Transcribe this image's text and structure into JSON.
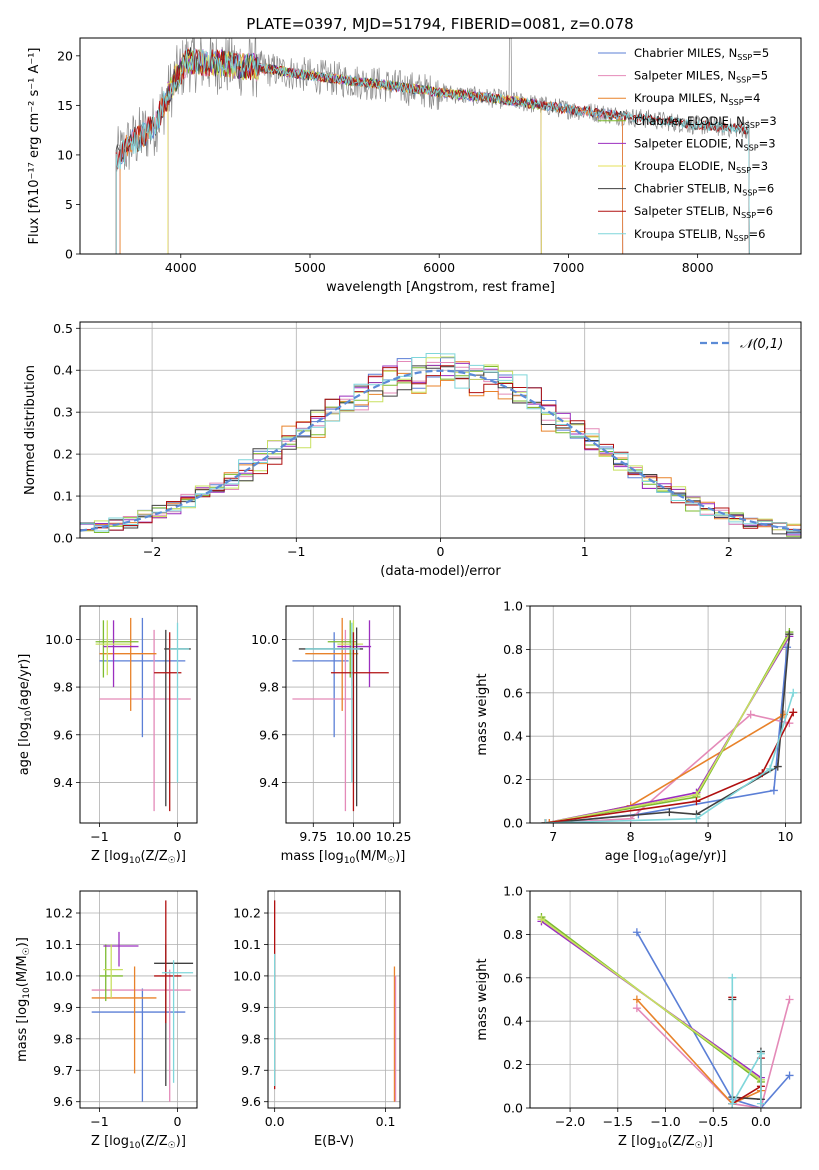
{
  "figure": {
    "title": "PLATE=0397, MJD=51794, FIBERID=0081, z=0.078"
  },
  "chart_data": [
    {
      "id": "spectrum",
      "type": "line",
      "title": "PLATE=0397, MJD=51794, FIBERID=0081, z=0.078",
      "xlabel": "wavelength [Angstrom, rest frame]",
      "ylabel": "Flux [fλ10⁻¹⁷ erg cm⁻² s⁻¹ A⁻¹]",
      "xlim": [
        3220,
        8800
      ],
      "ylim": [
        0,
        21.8
      ],
      "xticks": [
        4000,
        5000,
        6000,
        7000,
        8000
      ],
      "yticks": [
        0,
        5,
        10,
        15,
        20
      ],
      "grid": false,
      "legend_position": "top-right",
      "data_trend": {
        "x": [
          3500,
          3600,
          3800,
          3950,
          4050,
          4300,
          4600,
          5000,
          5500,
          6000,
          6500,
          7000,
          7500,
          8000,
          8400
        ],
        "y": [
          9.5,
          11.0,
          13.0,
          17.5,
          19.5,
          19.2,
          18.8,
          18.0,
          17.2,
          16.3,
          15.6,
          14.6,
          13.8,
          13.0,
          12.6
        ]
      },
      "series": [
        {
          "name": "Chabrier MILES, N$_{SSP}$=5",
          "label_main": "Chabrier MILES, N",
          "label_sub": "SSP",
          "label_tail": "=5",
          "color": "#5b7fd6",
          "x_start": 3530,
          "x_end": 7420
        },
        {
          "name": "Salpeter MILES, N$_{SSP}$=5",
          "label_main": "Salpeter MILES, N",
          "label_sub": "SSP",
          "label_tail": "=5",
          "color": "#e48ab8",
          "x_start": 3530,
          "x_end": 7420
        },
        {
          "name": "Kroupa MILES, N$_{SSP}$=4",
          "label_main": "Kroupa MILES, N",
          "label_sub": "SSP",
          "label_tail": "=4",
          "color": "#e8822a",
          "x_start": 3530,
          "x_end": 7420
        },
        {
          "name": "Chabrier ELODIE, N$_{SSP}$=3",
          "label_main": "Chabrier ELODIE, N",
          "label_sub": "SSP",
          "label_tail": "=3",
          "color": "#7dbb2f",
          "x_start": 3900,
          "x_end": 6790
        },
        {
          "name": "Salpeter ELODIE, N$_{SSP}$=3",
          "label_main": "Salpeter ELODIE, N",
          "label_sub": "SSP",
          "label_tail": "=3",
          "color": "#9b2fbf",
          "x_start": 3900,
          "x_end": 6790
        },
        {
          "name": "Kroupa ELODIE, N$_{SSP}$=3",
          "label_main": "Kroupa ELODIE, N",
          "label_sub": "SSP",
          "label_tail": "=3",
          "color": "#e6e05a",
          "x_start": 3900,
          "x_end": 6790
        },
        {
          "name": "Chabrier STELIB, N$_{SSP}$=6",
          "label_main": "Chabrier STELIB, N",
          "label_sub": "SSP",
          "label_tail": "=6",
          "color": "#404040",
          "x_start": 3500,
          "x_end": 8400
        },
        {
          "name": "Salpeter STELIB, N$_{SSP}$=6",
          "label_main": "Salpeter STELIB, N",
          "label_sub": "SSP",
          "label_tail": "=6",
          "color": "#b01010",
          "x_start": 3500,
          "x_end": 8400
        },
        {
          "name": "Kroupa STELIB, N$_{SSP}$=6",
          "label_main": "Kroupa STELIB, N",
          "label_sub": "SSP",
          "label_tail": "=6",
          "color": "#7fd6da",
          "x_start": 3500,
          "x_end": 8400
        }
      ]
    },
    {
      "id": "residuals",
      "type": "histogram",
      "xlabel": "(data-model)/error",
      "ylabel": "Normed distribution",
      "xlim": [
        -2.5,
        2.5
      ],
      "ylim": [
        0,
        0.515
      ],
      "xticks": [
        -2,
        -1,
        0,
        1,
        2
      ],
      "xtick_labels": [
        "−2",
        "−1",
        "0",
        "1",
        "2"
      ],
      "yticks": [
        0.0,
        0.1,
        0.2,
        0.3,
        0.4,
        0.5
      ],
      "grid": true,
      "bin_width": 0.1,
      "legend": {
        "label": "𝒩(0,1)",
        "position": "top-right"
      },
      "reference_curve": {
        "name": "𝒩(0,1)",
        "mean": 0,
        "sigma": 1,
        "color": "#5b8bd6"
      },
      "series_colors": [
        "#5b7fd6",
        "#e48ab8",
        "#e8822a",
        "#7dbb2f",
        "#9b2fbf",
        "#c8e060",
        "#404040",
        "#b01010",
        "#7fd6da"
      ]
    },
    {
      "id": "z_age",
      "type": "errorbar",
      "xlabel": "Z [log10(Z/Z☉)]",
      "ylabel": "age [log10(age/yr)]",
      "xlim": [
        -1.25,
        0.25
      ],
      "ylim": [
        9.23,
        10.14
      ],
      "xticks": [
        -1,
        0
      ],
      "xtick_labels": [
        "−1",
        "0"
      ],
      "yticks": [
        9.4,
        9.6,
        9.8,
        10.0
      ],
      "grid": true,
      "points": [
        {
          "x": -0.45,
          "y": 9.91,
          "x0": -1.0,
          "x1": 0.1,
          "y0": 9.59,
          "y1": 10.09,
          "color": "#5b7fd6"
        },
        {
          "x": -0.3,
          "y": 9.75,
          "x0": -1.0,
          "x1": 0.17,
          "y0": 9.28,
          "y1": 10.04,
          "color": "#e48ab8"
        },
        {
          "x": -0.6,
          "y": 9.94,
          "x0": -1.0,
          "x1": -0.27,
          "y0": 9.7,
          "y1": 10.09,
          "color": "#e8822a"
        },
        {
          "x": -0.95,
          "y": 9.99,
          "x0": -1.05,
          "x1": -0.5,
          "y0": 9.84,
          "y1": 10.08,
          "color": "#7dbb2f"
        },
        {
          "x": -0.82,
          "y": 9.97,
          "x0": -0.95,
          "x1": -0.5,
          "y0": 9.8,
          "y1": 10.08,
          "color": "#9b2fbf"
        },
        {
          "x": -0.9,
          "y": 9.98,
          "x0": -1.05,
          "x1": -0.6,
          "y0": 9.85,
          "y1": 10.08,
          "color": "#c8e060"
        },
        {
          "x": -0.15,
          "y": 9.96,
          "x0": -0.17,
          "x1": 0.17,
          "y0": 9.3,
          "y1": 10.04,
          "color": "#404040"
        },
        {
          "x": -0.1,
          "y": 9.86,
          "x0": -0.3,
          "x1": 0.05,
          "y0": 9.28,
          "y1": 10.03,
          "color": "#b01010"
        },
        {
          "x": 0.0,
          "y": 9.96,
          "x0": -0.1,
          "x1": 0.15,
          "y0": 9.4,
          "y1": 10.07,
          "color": "#7fd6da"
        }
      ]
    },
    {
      "id": "mass_age",
      "type": "errorbar",
      "xlabel": "mass [log10(M/M☉)]",
      "ylabel": "",
      "xlim": [
        9.58,
        10.29
      ],
      "ylim": [
        9.23,
        10.14
      ],
      "xticks": [
        9.75,
        10.0,
        10.25
      ],
      "xtick_labels": [
        "9.75",
        "10.00",
        "10.25"
      ],
      "yticks": [
        9.4,
        9.6,
        9.8,
        10.0
      ],
      "grid": true,
      "points": [
        {
          "x": 9.88,
          "y": 9.91,
          "x0": 9.62,
          "x1": 9.97,
          "y0": 9.59,
          "y1": 10.03,
          "color": "#5b7fd6"
        },
        {
          "x": 9.95,
          "y": 9.75,
          "x0": 9.62,
          "x1": 10.0,
          "y0": 9.28,
          "y1": 10.04,
          "color": "#e48ab8"
        },
        {
          "x": 9.93,
          "y": 9.94,
          "x0": 9.7,
          "x1": 10.03,
          "y0": 9.7,
          "y1": 10.09,
          "color": "#e8822a"
        },
        {
          "x": 9.98,
          "y": 9.99,
          "x0": 9.84,
          "x1": 10.02,
          "y0": 9.84,
          "y1": 10.08,
          "color": "#7dbb2f"
        },
        {
          "x": 10.1,
          "y": 9.97,
          "x0": 9.9,
          "x1": 10.11,
          "y0": 9.8,
          "y1": 10.08,
          "color": "#9b2fbf"
        },
        {
          "x": 10.0,
          "y": 9.98,
          "x0": 9.9,
          "x1": 10.06,
          "y0": 9.85,
          "y1": 10.08,
          "color": "#c8e060"
        },
        {
          "x": 10.02,
          "y": 9.96,
          "x0": 9.66,
          "x1": 10.06,
          "y0": 9.3,
          "y1": 10.05,
          "color": "#404040"
        },
        {
          "x": 10.0,
          "y": 9.86,
          "x0": 9.86,
          "x1": 10.22,
          "y0": 9.28,
          "y1": 10.03,
          "color": "#b01010"
        },
        {
          "x": 9.99,
          "y": 9.96,
          "x0": 9.7,
          "x1": 10.04,
          "y0": 9.4,
          "y1": 10.07,
          "color": "#7fd6da"
        }
      ]
    },
    {
      "id": "age_massweight",
      "type": "line",
      "xlabel": "age [log10(age/yr)]",
      "ylabel": "mass weight",
      "xlim": [
        6.7,
        10.2
      ],
      "ylim": [
        0,
        1.0
      ],
      "xticks": [
        7,
        8,
        9,
        10
      ],
      "yticks": [
        0.0,
        0.2,
        0.4,
        0.6,
        0.8,
        1.0
      ],
      "grid": true,
      "series": [
        {
          "color": "#5b7fd6",
          "x": [
            6.95,
            8.1,
            9.85,
            10.02
          ],
          "y": [
            0.0,
            0.04,
            0.15,
            0.81
          ]
        },
        {
          "color": "#e48ab8",
          "x": [
            6.95,
            8.0,
            9.55,
            10.05
          ],
          "y": [
            0.0,
            0.02,
            0.5,
            0.46
          ]
        },
        {
          "color": "#e8822a",
          "x": [
            6.95,
            8.0,
            9.98
          ],
          "y": [
            0.0,
            0.08,
            0.5
          ]
        },
        {
          "color": "#7dbb2f",
          "x": [
            6.9,
            8.85,
            10.05
          ],
          "y": [
            0.0,
            0.12,
            0.88
          ]
        },
        {
          "color": "#9b2fbf",
          "x": [
            6.9,
            8.85,
            10.05
          ],
          "y": [
            0.0,
            0.14,
            0.86
          ]
        },
        {
          "color": "#c8e060",
          "x": [
            6.9,
            8.85,
            10.05
          ],
          "y": [
            0.0,
            0.13,
            0.87
          ]
        },
        {
          "color": "#404040",
          "x": [
            6.9,
            8.5,
            8.85,
            9.9,
            10.05
          ],
          "y": [
            0.0,
            0.05,
            0.04,
            0.26,
            0.87
          ]
        },
        {
          "color": "#b01010",
          "x": [
            6.9,
            8.85,
            9.7,
            10.1
          ],
          "y": [
            0.0,
            0.1,
            0.23,
            0.51
          ]
        },
        {
          "color": "#7fd6da",
          "x": [
            6.9,
            8.85,
            9.8,
            10.1
          ],
          "y": [
            0.0,
            0.02,
            0.25,
            0.6
          ]
        }
      ]
    },
    {
      "id": "z_mass",
      "type": "errorbar",
      "xlabel": "Z [log10(Z/Z☉)]",
      "ylabel": "mass [log10(M/M☉)]",
      "xlim": [
        -1.25,
        0.25
      ],
      "ylim": [
        9.58,
        10.27
      ],
      "xticks": [
        -1,
        0
      ],
      "xtick_labels": [
        "−1",
        "0"
      ],
      "yticks": [
        9.6,
        9.7,
        9.8,
        9.9,
        10.0,
        10.1,
        10.2
      ],
      "grid": true,
      "points": [
        {
          "x": -0.45,
          "y": 9.885,
          "x0": -1.1,
          "x1": 0.1,
          "y0": 9.6,
          "y1": 9.96,
          "color": "#5b7fd6"
        },
        {
          "x": -0.1,
          "y": 9.955,
          "x0": -1.1,
          "x1": 0.17,
          "y0": 9.6,
          "y1": 10.02,
          "color": "#e48ab8"
        },
        {
          "x": -0.55,
          "y": 9.93,
          "x0": -1.1,
          "x1": -0.27,
          "y0": 9.69,
          "y1": 10.03,
          "color": "#e8822a"
        },
        {
          "x": -0.92,
          "y": 10.0,
          "x0": -1.0,
          "x1": -0.7,
          "y0": 9.92,
          "y1": 10.1,
          "color": "#7dbb2f"
        },
        {
          "x": -0.75,
          "y": 10.095,
          "x0": -0.95,
          "x1": -0.5,
          "y0": 10.03,
          "y1": 10.14,
          "color": "#9b2fbf"
        },
        {
          "x": -0.85,
          "y": 10.02,
          "x0": -0.95,
          "x1": -0.7,
          "y0": 9.93,
          "y1": 10.1,
          "color": "#c8e060"
        },
        {
          "x": -0.15,
          "y": 10.04,
          "x0": -0.3,
          "x1": 0.2,
          "y0": 9.65,
          "y1": 10.1,
          "color": "#404040"
        },
        {
          "x": -0.15,
          "y": 10.0,
          "x0": -0.3,
          "x1": 0.05,
          "y0": 9.85,
          "y1": 10.24,
          "color": "#b01010"
        },
        {
          "x": -0.05,
          "y": 10.01,
          "x0": -0.2,
          "x1": 0.2,
          "y0": 9.66,
          "y1": 10.05,
          "color": "#7fd6da"
        }
      ]
    },
    {
      "id": "ebv_mass",
      "type": "errorbar",
      "xlabel": "E(B-V)",
      "ylabel": "",
      "xlim": [
        -0.006,
        0.113
      ],
      "ylim": [
        9.58,
        10.27
      ],
      "xticks": [
        0.0,
        0.1
      ],
      "xtick_labels": [
        "0.0",
        "0.1"
      ],
      "yticks": [
        9.6,
        9.7,
        9.8,
        9.9,
        10.0,
        10.1,
        10.2
      ],
      "grid": true,
      "points": [
        {
          "x": 0.0,
          "y": 10.0,
          "x0": 0.0,
          "x1": 0.0,
          "y0": 9.64,
          "y1": 10.24,
          "color": "#b01010"
        },
        {
          "x": 0.0,
          "y": 9.95,
          "x0": 0.0,
          "x1": 0.0,
          "y0": 9.65,
          "y1": 10.07,
          "color": "#7fd6da"
        },
        {
          "x": 0.108,
          "y": 9.95,
          "x0": 0.108,
          "x1": 0.108,
          "y0": 9.6,
          "y1": 10.03,
          "color": "#e8822a"
        },
        {
          "x": 0.109,
          "y": 9.95,
          "x0": 0.109,
          "x1": 0.109,
          "y0": 9.6,
          "y1": 10.0,
          "color": "#e48ab8"
        }
      ]
    },
    {
      "id": "z_massweight",
      "type": "line",
      "xlabel": "Z [log10(Z/Z☉)]",
      "ylabel": "mass weight",
      "xlim": [
        -2.42,
        0.42
      ],
      "ylim": [
        0,
        1.0
      ],
      "xticks": [
        -2.0,
        -1.5,
        -1.0,
        -0.5,
        0.0
      ],
      "xtick_labels": [
        "−2.0",
        "−1.5",
        "−1.0",
        "−0.5",
        "0.0"
      ],
      "yticks": [
        0.0,
        0.2,
        0.4,
        0.6,
        0.8,
        1.0
      ],
      "grid": true,
      "series": [
        {
          "color": "#5b7fd6",
          "x": [
            -1.3,
            -0.3,
            0.0,
            0.3
          ],
          "y": [
            0.81,
            0.04,
            0.0,
            0.15
          ]
        },
        {
          "color": "#e48ab8",
          "x": [
            -1.3,
            -0.3,
            0.0,
            0.3
          ],
          "y": [
            0.46,
            0.02,
            0.0,
            0.5
          ]
        },
        {
          "color": "#e8822a",
          "x": [
            -1.3,
            -0.3,
            0.0
          ],
          "y": [
            0.5,
            0.02,
            0.08
          ]
        },
        {
          "color": "#7dbb2f",
          "x": [
            -2.3,
            0.0
          ],
          "y": [
            0.88,
            0.12
          ]
        },
        {
          "color": "#9b2fbf",
          "x": [
            -2.3,
            0.0
          ],
          "y": [
            0.86,
            0.14
          ]
        },
        {
          "color": "#c8e060",
          "x": [
            -2.3,
            0.0
          ],
          "y": [
            0.87,
            0.13
          ]
        },
        {
          "color": "#404040",
          "x": [
            -0.3,
            -0.3,
            0.0,
            0.0
          ],
          "y": [
            0.5,
            0.05,
            0.04,
            0.26
          ]
        },
        {
          "color": "#b01010",
          "x": [
            -0.3,
            -0.3,
            0.0,
            0.0
          ],
          "y": [
            0.51,
            0.02,
            0.1,
            0.23
          ]
        },
        {
          "color": "#7fd6da",
          "x": [
            -0.3,
            -0.3,
            0.0,
            0.0
          ],
          "y": [
            0.6,
            0.02,
            0.25,
            0.02
          ]
        }
      ]
    }
  ]
}
